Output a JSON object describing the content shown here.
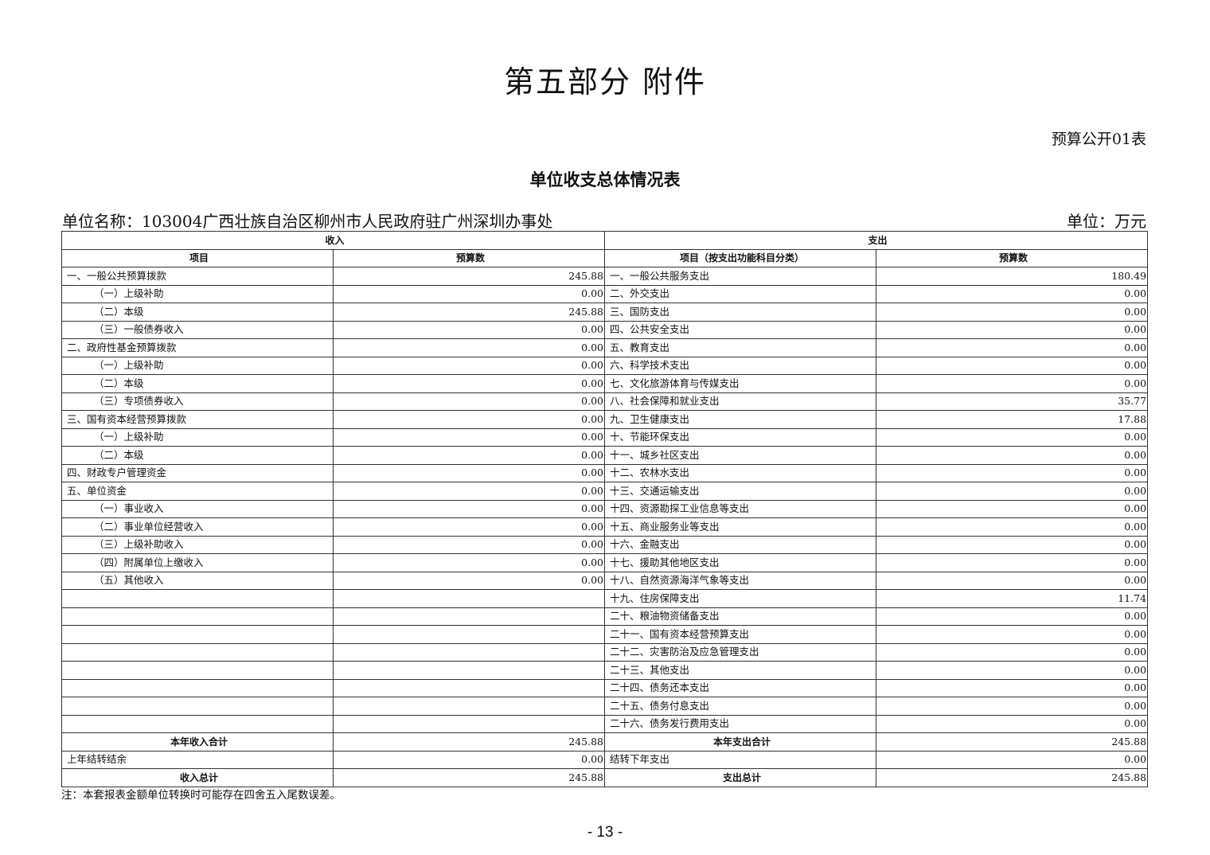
{
  "title": "第五部分  附件",
  "table_no": "预算公开01表",
  "subtitle": "单位收支总体情况表",
  "unit_name": "单位名称：103004广西壮族自治区柳州市人民政府驻广州深圳办事处",
  "unit": "单位：万元",
  "headers": {
    "income": "收入",
    "expense": "支出",
    "income_item": "项目",
    "income_amount": "预算数",
    "expense_item": "项目（按支出功能科目分类）",
    "expense_amount": "预算数"
  },
  "rows": [
    {
      "in_item": "一、一般公共预算拨款",
      "in_ind": false,
      "in_amt": "245.88",
      "ex_item": "一、一般公共服务支出",
      "ex_amt": "180.49"
    },
    {
      "in_item": "（一）上级补助",
      "in_ind": true,
      "in_amt": "0.00",
      "ex_item": "二、外交支出",
      "ex_amt": "0.00"
    },
    {
      "in_item": "（二）本级",
      "in_ind": true,
      "in_amt": "245.88",
      "ex_item": "三、国防支出",
      "ex_amt": "0.00"
    },
    {
      "in_item": "（三）一般债券收入",
      "in_ind": true,
      "in_amt": "0.00",
      "ex_item": "四、公共安全支出",
      "ex_amt": "0.00"
    },
    {
      "in_item": "二、政府性基金预算拨款",
      "in_ind": false,
      "in_amt": "0.00",
      "ex_item": "五、教育支出",
      "ex_amt": "0.00"
    },
    {
      "in_item": "（一）上级补助",
      "in_ind": true,
      "in_amt": "0.00",
      "ex_item": "六、科学技术支出",
      "ex_amt": "0.00"
    },
    {
      "in_item": "（二）本级",
      "in_ind": true,
      "in_amt": "0.00",
      "ex_item": "七、文化旅游体育与传媒支出",
      "ex_amt": "0.00"
    },
    {
      "in_item": "（三）专项债券收入",
      "in_ind": true,
      "in_amt": "0.00",
      "ex_item": "八、社会保障和就业支出",
      "ex_amt": "35.77"
    },
    {
      "in_item": "三、国有资本经营预算拨款",
      "in_ind": false,
      "in_amt": "0.00",
      "ex_item": "九、卫生健康支出",
      "ex_amt": "17.88"
    },
    {
      "in_item": "（一）上级补助",
      "in_ind": true,
      "in_amt": "0.00",
      "ex_item": "十、节能环保支出",
      "ex_amt": "0.00"
    },
    {
      "in_item": "（二）本级",
      "in_ind": true,
      "in_amt": "0.00",
      "ex_item": "十一、城乡社区支出",
      "ex_amt": "0.00"
    },
    {
      "in_item": "四、财政专户管理资金",
      "in_ind": false,
      "in_amt": "0.00",
      "ex_item": "十二、农林水支出",
      "ex_amt": "0.00"
    },
    {
      "in_item": "五、单位资金",
      "in_ind": false,
      "in_amt": "0.00",
      "ex_item": "十三、交通运输支出",
      "ex_amt": "0.00"
    },
    {
      "in_item": "（一）事业收入",
      "in_ind": true,
      "in_amt": "0.00",
      "ex_item": "十四、资源勘探工业信息等支出",
      "ex_amt": "0.00"
    },
    {
      "in_item": "（二）事业单位经营收入",
      "in_ind": true,
      "in_amt": "0.00",
      "ex_item": "十五、商业服务业等支出",
      "ex_amt": "0.00"
    },
    {
      "in_item": "（三）上级补助收入",
      "in_ind": true,
      "in_amt": "0.00",
      "ex_item": "十六、金融支出",
      "ex_amt": "0.00"
    },
    {
      "in_item": "（四）附属单位上缴收入",
      "in_ind": true,
      "in_amt": "0.00",
      "ex_item": "十七、援助其他地区支出",
      "ex_amt": "0.00"
    },
    {
      "in_item": "（五）其他收入",
      "in_ind": true,
      "in_amt": "0.00",
      "ex_item": "十八、自然资源海洋气象等支出",
      "ex_amt": "0.00"
    },
    {
      "in_item": "",
      "in_ind": false,
      "in_amt": "",
      "ex_item": "十九、住房保障支出",
      "ex_amt": "11.74"
    },
    {
      "in_item": "",
      "in_ind": false,
      "in_amt": "",
      "ex_item": "二十、粮油物资储备支出",
      "ex_amt": "0.00"
    },
    {
      "in_item": "",
      "in_ind": false,
      "in_amt": "",
      "ex_item": "二十一、国有资本经营预算支出",
      "ex_amt": "0.00"
    },
    {
      "in_item": "",
      "in_ind": false,
      "in_amt": "",
      "ex_item": "二十二、灾害防治及应急管理支出",
      "ex_amt": "0.00"
    },
    {
      "in_item": "",
      "in_ind": false,
      "in_amt": "",
      "ex_item": "二十三、其他支出",
      "ex_amt": "0.00"
    },
    {
      "in_item": "",
      "in_ind": false,
      "in_amt": "",
      "ex_item": "二十四、债务还本支出",
      "ex_amt": "0.00"
    },
    {
      "in_item": "",
      "in_ind": false,
      "in_amt": "",
      "ex_item": "二十五、债务付息支出",
      "ex_amt": "0.00"
    },
    {
      "in_item": "",
      "in_ind": false,
      "in_amt": "",
      "ex_item": "二十六、债务发行费用支出",
      "ex_amt": "0.00"
    }
  ],
  "totals": [
    {
      "in_item": "本年收入合计",
      "in_bold": true,
      "in_amt": "245.88",
      "ex_item": "本年支出合计",
      "ex_bold": true,
      "ex_amt": "245.88"
    },
    {
      "in_item": "上年结转结余",
      "in_bold": false,
      "in_amt": "0.00",
      "ex_item": "结转下年支出",
      "ex_bold": false,
      "ex_amt": "0.00"
    },
    {
      "in_item": "收入总计",
      "in_bold": true,
      "in_amt": "245.88",
      "ex_item": "支出总计",
      "ex_bold": true,
      "ex_amt": "245.88"
    }
  ],
  "note": "注：本套报表金额单位转换时可能存在四舍五入尾数误差。",
  "page_number": "- 13 -"
}
